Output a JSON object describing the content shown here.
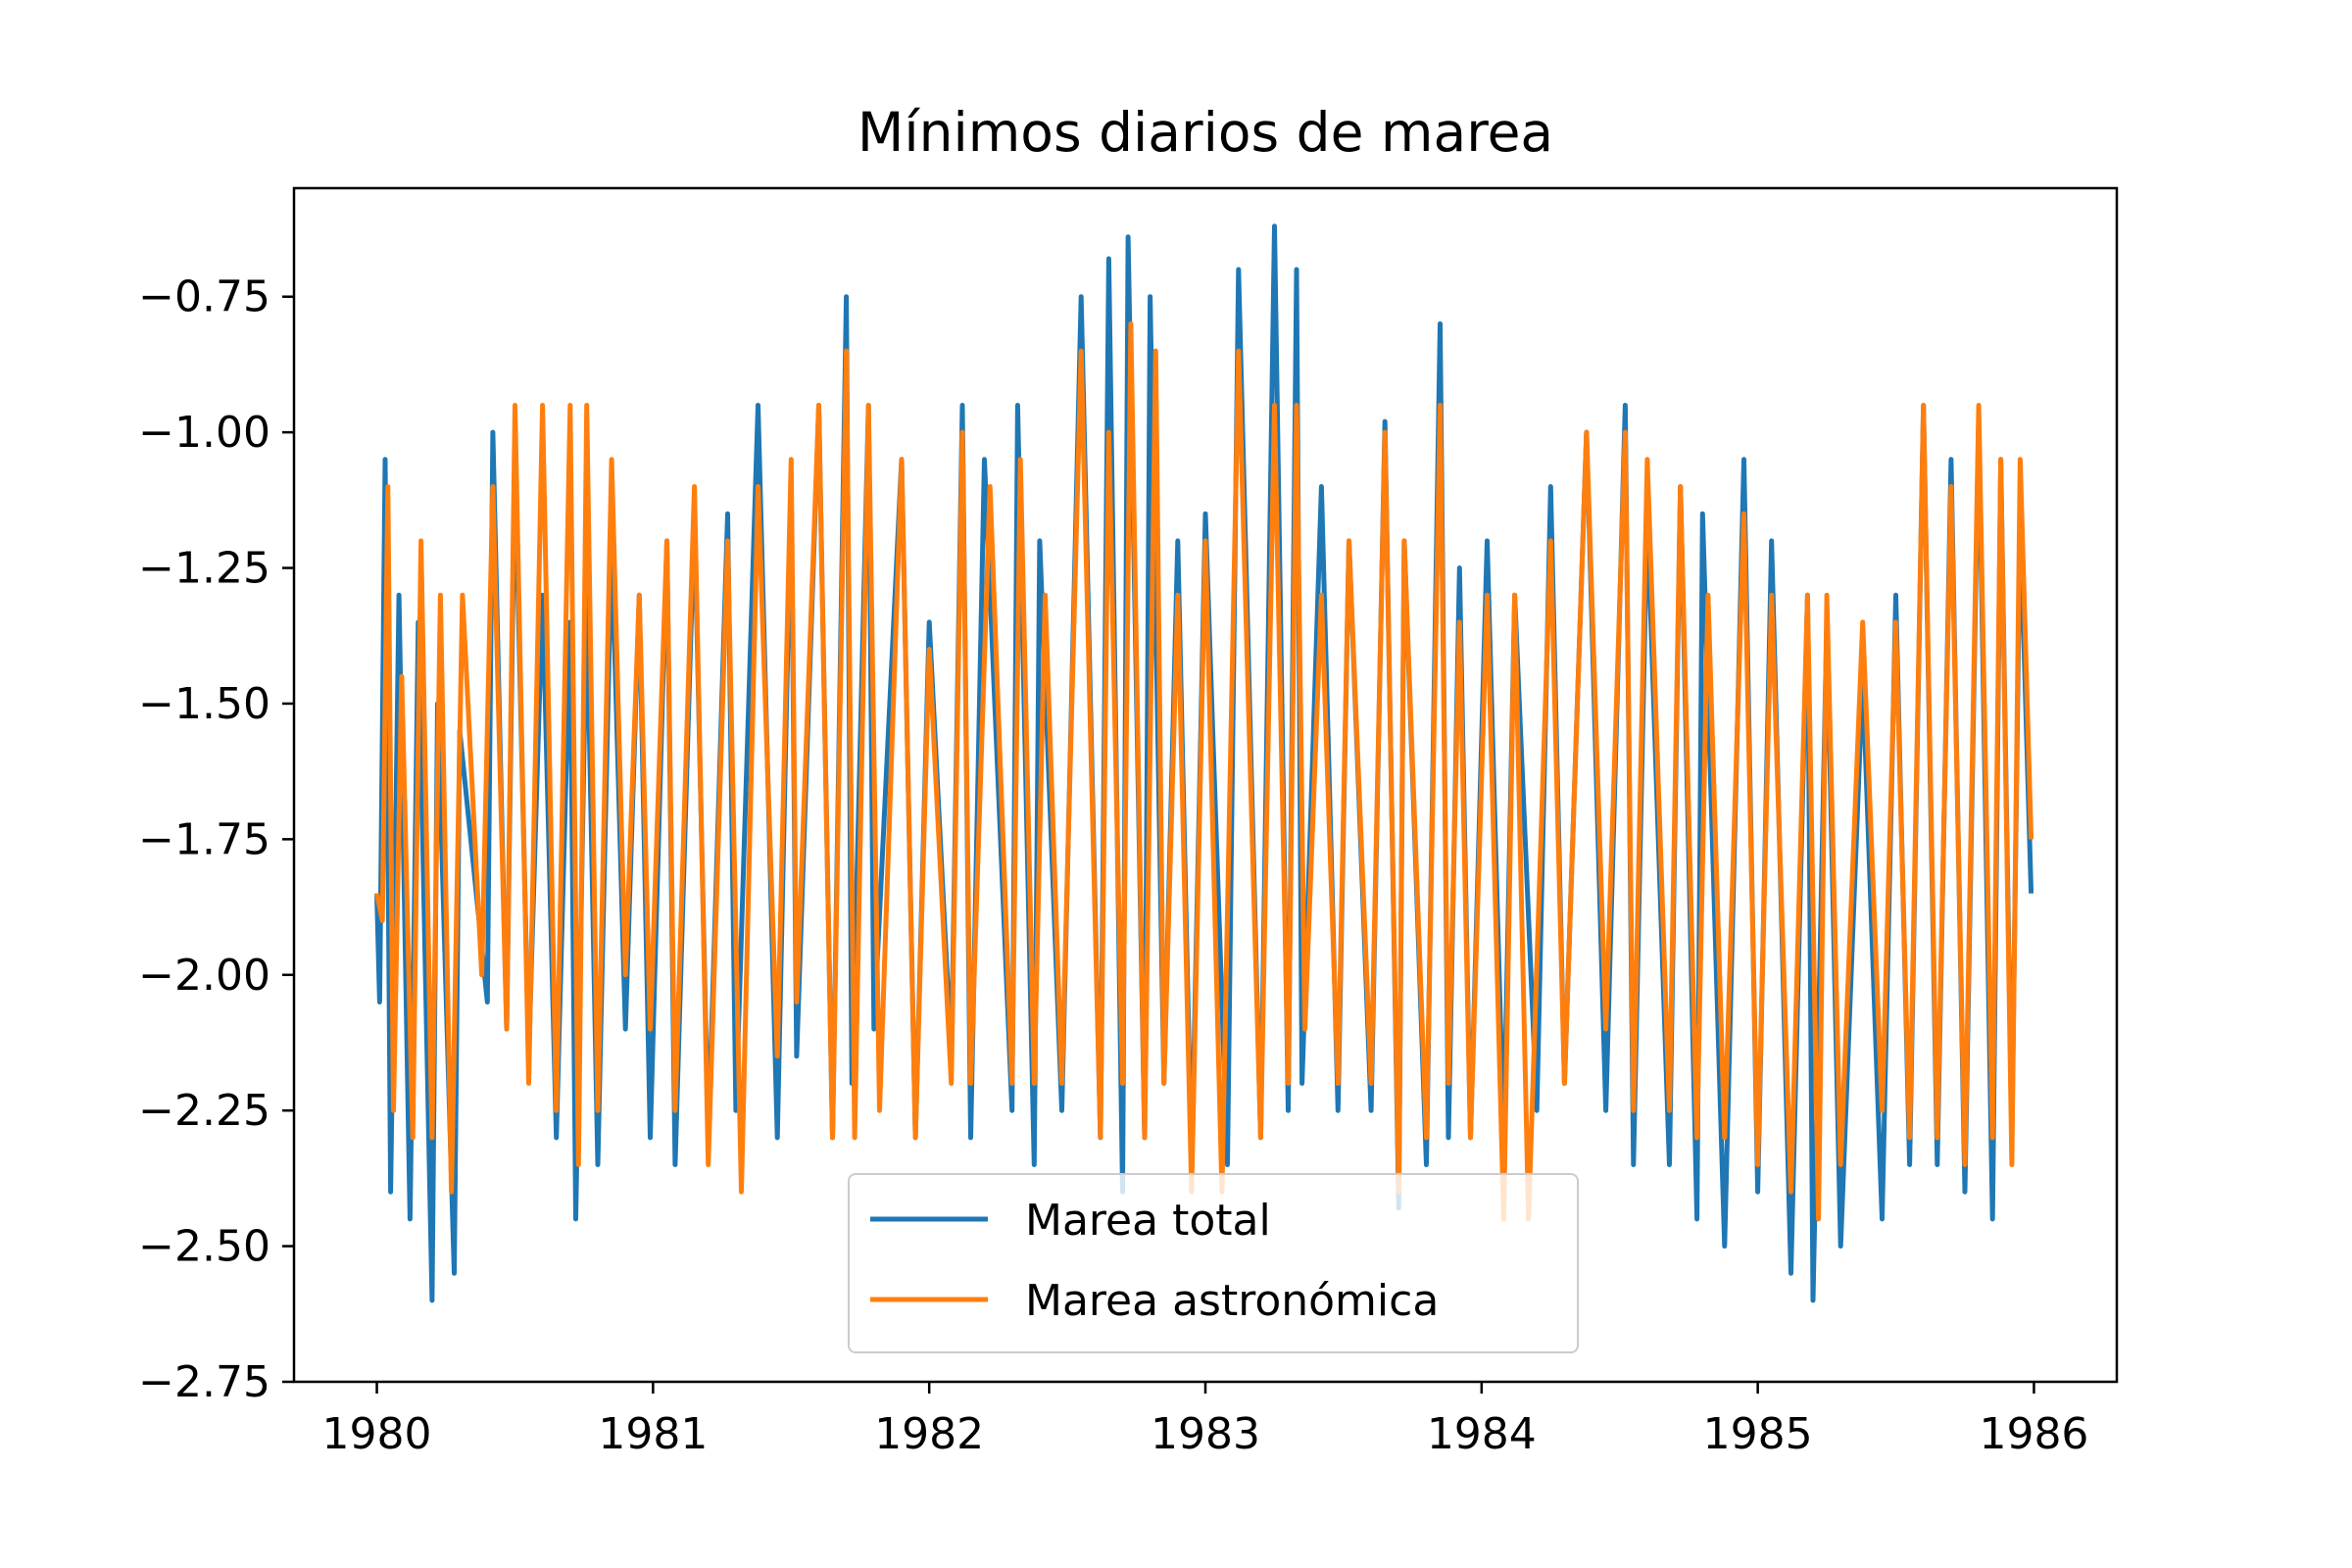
{
  "chart_data": {
    "type": "line",
    "title": "Mínimos diarios de marea",
    "xlabel": "",
    "ylabel": "",
    "xlim": [
      1979.7,
      1986.3
    ],
    "ylim": [
      -2.75,
      -0.55
    ],
    "x_ticks": [
      1980,
      1981,
      1982,
      1983,
      1984,
      1985,
      1986
    ],
    "x_tick_labels": [
      "1980",
      "1981",
      "1982",
      "1983",
      "1984",
      "1985",
      "1986"
    ],
    "y_ticks": [
      -2.75,
      -2.5,
      -2.25,
      -2.0,
      -1.75,
      -1.5,
      -1.25,
      -1.0,
      -0.75
    ],
    "y_tick_labels": [
      "−2.75",
      "−2.50",
      "−2.25",
      "−2.00",
      "−1.75",
      "−1.50",
      "−1.25",
      "−1.00",
      "−0.75"
    ],
    "grid": false,
    "legend": {
      "position": "lower-center"
    },
    "series": [
      {
        "name": "Marea total",
        "color": "#1f77b4",
        "x": [
          1980.0,
          1980.01,
          1980.03,
          1980.05,
          1980.08,
          1980.12,
          1980.15,
          1980.2,
          1980.22,
          1980.28,
          1980.3,
          1980.4,
          1980.42,
          1980.47,
          1980.5,
          1980.55,
          1980.6,
          1980.65,
          1980.7,
          1980.72,
          1980.76,
          1980.8,
          1980.85,
          1980.9,
          1980.95,
          1980.99,
          1981.05,
          1981.08,
          1981.15,
          1981.2,
          1981.27,
          1981.3,
          1981.38,
          1981.45,
          1981.5,
          1981.52,
          1981.6,
          1981.65,
          1981.7,
          1981.72,
          1981.78,
          1981.8,
          1981.9,
          1981.95,
          1982.0,
          1982.08,
          1982.12,
          1982.15,
          1982.2,
          1982.3,
          1982.32,
          1982.38,
          1982.4,
          1982.48,
          1982.55,
          1982.62,
          1982.65,
          1982.7,
          1982.72,
          1982.78,
          1982.8,
          1982.85,
          1982.9,
          1982.95,
          1983.0,
          1983.08,
          1983.12,
          1983.2,
          1983.25,
          1983.3,
          1983.33,
          1983.35,
          1983.42,
          1983.48,
          1983.52,
          1983.6,
          1983.65,
          1983.7,
          1983.72,
          1983.8,
          1983.85,
          1983.88,
          1983.92,
          1983.96,
          1984.02,
          1984.08,
          1984.12,
          1984.2,
          1984.25,
          1984.3,
          1984.38,
          1984.45,
          1984.52,
          1984.55,
          1984.6,
          1984.68,
          1984.72,
          1984.78,
          1984.8,
          1984.88,
          1984.95,
          1985.0,
          1985.05,
          1985.12,
          1985.18,
          1985.2,
          1985.25,
          1985.3,
          1985.38,
          1985.45,
          1985.5,
          1985.55,
          1985.6,
          1985.65,
          1985.7,
          1985.75,
          1985.8,
          1985.85,
          1985.88,
          1985.92,
          1985.95,
          1985.99
        ],
        "y": [
          -1.85,
          -2.05,
          -1.05,
          -2.4,
          -1.3,
          -2.45,
          -1.35,
          -2.6,
          -1.5,
          -2.55,
          -1.55,
          -2.05,
          -1.0,
          -2.1,
          -1.05,
          -2.15,
          -1.3,
          -2.3,
          -1.35,
          -2.45,
          -1.3,
          -2.35,
          -1.2,
          -2.1,
          -1.3,
          -2.3,
          -1.2,
          -2.35,
          -1.15,
          -2.3,
          -1.15,
          -2.25,
          -0.95,
          -2.3,
          -1.1,
          -2.15,
          -0.95,
          -2.3,
          -0.75,
          -2.2,
          -0.95,
          -2.1,
          -1.05,
          -2.3,
          -1.35,
          -2.15,
          -0.95,
          -2.3,
          -1.05,
          -2.25,
          -0.95,
          -2.35,
          -1.2,
          -2.25,
          -0.75,
          -2.3,
          -0.68,
          -2.4,
          -0.64,
          -2.3,
          -0.75,
          -2.2,
          -1.2,
          -2.35,
          -1.15,
          -2.35,
          -0.7,
          -2.3,
          -0.62,
          -2.25,
          -0.7,
          -2.2,
          -1.1,
          -2.25,
          -1.2,
          -2.25,
          -0.98,
          -2.43,
          -1.2,
          -2.35,
          -0.8,
          -2.3,
          -1.25,
          -2.3,
          -1.2,
          -2.3,
          -1.3,
          -2.25,
          -1.1,
          -2.2,
          -1.0,
          -2.25,
          -0.95,
          -2.35,
          -1.15,
          -2.35,
          -1.1,
          -2.45,
          -1.15,
          -2.5,
          -1.05,
          -2.4,
          -1.2,
          -2.55,
          -1.3,
          -2.6,
          -1.35,
          -2.5,
          -1.45,
          -2.45,
          -1.3,
          -2.35,
          -0.95,
          -2.35,
          -1.05,
          -2.4,
          -0.98,
          -2.45,
          -1.05,
          -2.3,
          -1.15,
          -1.85
        ]
      },
      {
        "name": "Marea astronómica",
        "color": "#ff7f0e",
        "x": [
          1980.0,
          1980.02,
          1980.04,
          1980.06,
          1980.09,
          1980.13,
          1980.16,
          1980.2,
          1980.23,
          1980.27,
          1980.31,
          1980.38,
          1980.42,
          1980.47,
          1980.5,
          1980.55,
          1980.6,
          1980.65,
          1980.7,
          1980.73,
          1980.76,
          1980.8,
          1980.85,
          1980.9,
          1980.95,
          1980.99,
          1981.05,
          1981.08,
          1981.15,
          1981.2,
          1981.27,
          1981.32,
          1981.38,
          1981.45,
          1981.5,
          1981.52,
          1981.6,
          1981.65,
          1981.7,
          1981.73,
          1981.78,
          1981.82,
          1981.9,
          1981.95,
          1982.0,
          1982.08,
          1982.12,
          1982.15,
          1982.22,
          1982.3,
          1982.33,
          1982.38,
          1982.42,
          1982.48,
          1982.55,
          1982.62,
          1982.65,
          1982.7,
          1982.73,
          1982.78,
          1982.82,
          1982.85,
          1982.9,
          1982.95,
          1983.0,
          1983.06,
          1983.12,
          1983.2,
          1983.25,
          1983.3,
          1983.33,
          1983.36,
          1983.42,
          1983.48,
          1983.52,
          1983.6,
          1983.65,
          1983.7,
          1983.72,
          1983.8,
          1983.85,
          1983.88,
          1983.92,
          1983.96,
          1984.02,
          1984.08,
          1984.12,
          1984.17,
          1984.25,
          1984.3,
          1984.38,
          1984.45,
          1984.52,
          1984.55,
          1984.6,
          1984.68,
          1984.72,
          1984.78,
          1984.82,
          1984.88,
          1984.95,
          1985.0,
          1985.05,
          1985.12,
          1985.18,
          1985.22,
          1985.25,
          1985.3,
          1985.38,
          1985.45,
          1985.5,
          1985.55,
          1985.6,
          1985.65,
          1985.7,
          1985.75,
          1985.8,
          1985.85,
          1985.88,
          1985.92,
          1985.95,
          1985.99
        ],
        "y": [
          -1.85,
          -1.9,
          -1.1,
          -2.25,
          -1.45,
          -2.3,
          -1.2,
          -2.3,
          -1.3,
          -2.4,
          -1.3,
          -2.0,
          -1.1,
          -2.1,
          -0.95,
          -2.2,
          -0.95,
          -2.25,
          -0.95,
          -2.35,
          -0.95,
          -2.25,
          -1.05,
          -2.0,
          -1.3,
          -2.1,
          -1.2,
          -2.25,
          -1.1,
          -2.35,
          -1.2,
          -2.4,
          -1.1,
          -2.15,
          -1.05,
          -2.05,
          -0.95,
          -2.3,
          -0.85,
          -2.3,
          -0.95,
          -2.25,
          -1.05,
          -2.3,
          -1.4,
          -2.2,
          -1.0,
          -2.2,
          -1.1,
          -2.2,
          -1.05,
          -2.2,
          -1.3,
          -2.2,
          -0.85,
          -2.3,
          -1.0,
          -2.2,
          -0.8,
          -2.3,
          -0.85,
          -2.2,
          -1.3,
          -2.4,
          -1.2,
          -2.4,
          -0.85,
          -2.3,
          -0.95,
          -2.2,
          -0.95,
          -2.1,
          -1.3,
          -2.2,
          -1.2,
          -2.2,
          -1.0,
          -2.4,
          -1.2,
          -2.3,
          -0.95,
          -2.2,
          -1.35,
          -2.3,
          -1.3,
          -2.45,
          -1.3,
          -2.45,
          -1.2,
          -2.2,
          -1.0,
          -2.1,
          -1.0,
          -2.25,
          -1.05,
          -2.25,
          -1.1,
          -2.3,
          -1.3,
          -2.3,
          -1.15,
          -2.35,
          -1.3,
          -2.4,
          -1.3,
          -2.45,
          -1.3,
          -2.35,
          -1.35,
          -2.25,
          -1.35,
          -2.3,
          -0.95,
          -2.3,
          -1.1,
          -2.35,
          -0.95,
          -2.3,
          -1.05,
          -2.35,
          -1.05,
          -1.75
        ]
      }
    ]
  }
}
